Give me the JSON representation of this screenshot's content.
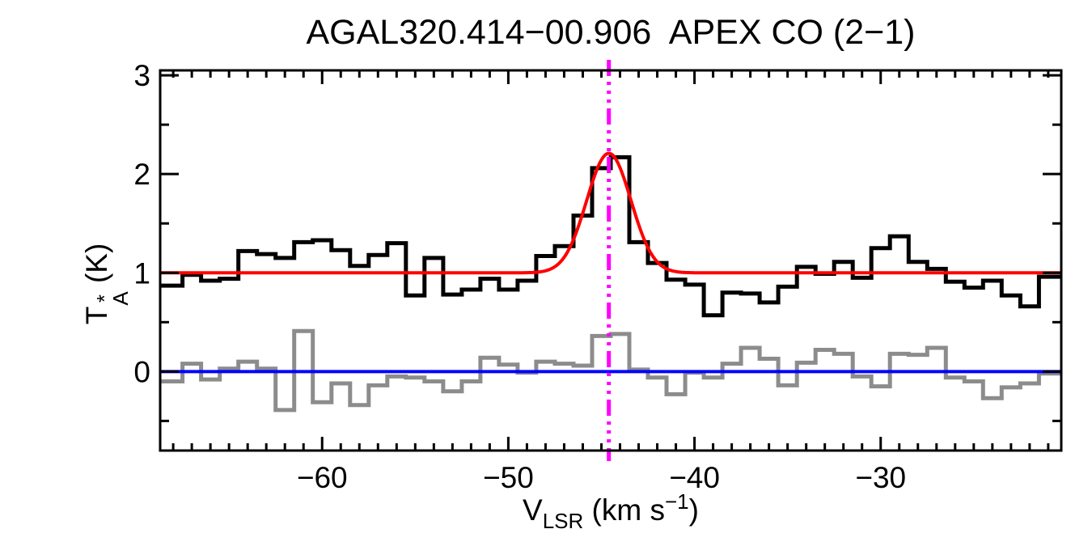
{
  "labels": {
    "title": "AGAL320.414−00.906  APEX CO (2−1)",
    "ylabel": {
      "base": "T",
      "sup": "*",
      "sub": "A",
      "rest": " (K)"
    },
    "xlabel": {
      "base": "V",
      "sub": "LSR",
      "rest": " (km s",
      "sup": "−1",
      "close": ")"
    }
  },
  "chart_data": {
    "type": "line",
    "subtype": "spectrum-histogram",
    "title": "AGAL320.414−00.906  APEX CO (2−1)",
    "xlabel": "V_LSR (km s^-1)",
    "ylabel": "T*_A (K)",
    "xlim": [
      -68.7,
      -20.3
    ],
    "ylim": [
      -0.8,
      3.05
    ],
    "xticks_major": [
      -60,
      -50,
      -40,
      -30
    ],
    "xtick_labels": [
      "−60",
      "−50",
      "−40",
      "−30"
    ],
    "xminor_step": 1,
    "yticks_major": [
      0,
      1,
      2,
      3
    ],
    "ytick_labels": [
      "0",
      "1",
      "2",
      "3"
    ],
    "yminor_step": 0.5,
    "grid": false,
    "channel_width": 1.0,
    "x": [
      -68,
      -67,
      -66,
      -65,
      -64,
      -63,
      -62,
      -61,
      -60,
      -59,
      -58,
      -57,
      -56,
      -55,
      -54,
      -53,
      -52,
      -51,
      -50,
      -49,
      -48,
      -47,
      -46,
      -45,
      -44,
      -43,
      -42,
      -41,
      -40,
      -39,
      -38,
      -37,
      -36,
      -35,
      -34,
      -33,
      -32,
      -31,
      -30,
      -29,
      -28,
      -27,
      -26,
      -25,
      -24,
      -23,
      -22,
      -21
    ],
    "series": [
      {
        "name": "spectrum",
        "style": "histogram",
        "color": "#000000",
        "line_width": 5,
        "values": [
          0.87,
          0.98,
          0.92,
          0.94,
          1.22,
          1.19,
          1.15,
          1.31,
          1.33,
          1.23,
          1.07,
          1.18,
          1.3,
          0.77,
          1.15,
          0.78,
          0.83,
          0.94,
          0.83,
          0.92,
          1.17,
          1.27,
          1.58,
          2.06,
          2.17,
          1.31,
          1.1,
          0.93,
          0.88,
          0.57,
          0.8,
          0.79,
          0.7,
          0.86,
          1.06,
          0.99,
          1.11,
          0.95,
          1.25,
          1.37,
          1.11,
          1.04,
          0.91,
          0.85,
          0.92,
          0.77,
          0.66,
          0.96
        ]
      },
      {
        "name": "residual",
        "style": "histogram",
        "color": "#8c8c8c",
        "line_width": 5,
        "values": [
          -0.1,
          0.08,
          -0.08,
          0.03,
          0.1,
          0.03,
          -0.39,
          0.41,
          -0.31,
          -0.12,
          -0.34,
          -0.14,
          -0.05,
          -0.06,
          -0.1,
          -0.2,
          -0.1,
          0.14,
          0.07,
          -0.01,
          0.1,
          0.08,
          0.06,
          0.36,
          0.38,
          0.02,
          -0.06,
          -0.23,
          -0.01,
          -0.06,
          0.08,
          0.24,
          0.13,
          -0.14,
          0.09,
          0.22,
          0.18,
          -0.05,
          -0.15,
          0.18,
          0.17,
          0.24,
          -0.06,
          -0.1,
          -0.27,
          -0.16,
          -0.12,
          -0.02
        ]
      },
      {
        "name": "gaussian_fit",
        "style": "curve",
        "color": "#ff0000",
        "line_width": 4,
        "baseline": 1.0,
        "amplitude": 1.21,
        "center": -44.6,
        "fwhm": 2.8
      },
      {
        "name": "zero_baseline",
        "style": "hline",
        "color": "#0000ff",
        "line_width": 4,
        "y": 0
      },
      {
        "name": "fit_velocity_marker",
        "style": "vline-dashdot",
        "color": "#ff00ff",
        "line_width": 5,
        "x": -44.6
      }
    ]
  }
}
